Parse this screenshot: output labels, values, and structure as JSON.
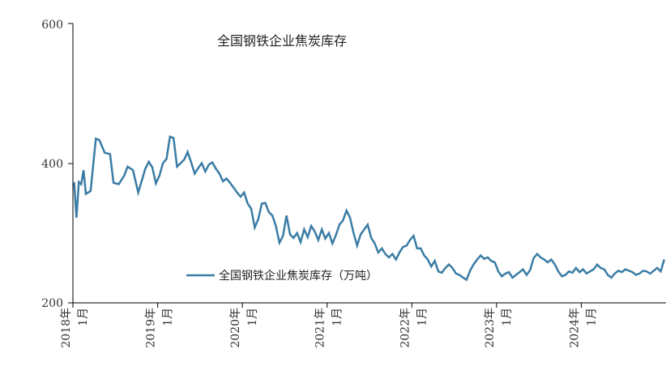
{
  "chart_data": {
    "type": "line",
    "title": "全国钢铁企业焦炭库存",
    "xlabel": "",
    "ylabel": "",
    "ylim": [
      200,
      600
    ],
    "yticks": [
      "200",
      "400",
      "600"
    ],
    "xtick_year": [
      "2018年",
      "2019年",
      "2020年",
      "2021年",
      "2022年",
      "2023年",
      "2024年"
    ],
    "xtick_month": [
      "1月",
      "1月",
      "1月",
      "1月",
      "1月",
      "1月",
      "1月"
    ],
    "x_range": [
      "2018-01",
      "2024-12"
    ],
    "grid": false,
    "legend_position": "center-right",
    "series": [
      {
        "name": "全国钢铁企业焦炭库存（万吨）",
        "color": "#3a7ca5",
        "points": [
          [
            "2018-01",
            373
          ],
          [
            "2018-01",
            322
          ],
          [
            "2018-01",
            373
          ],
          [
            "2018-02",
            370
          ],
          [
            "2018-02",
            390
          ],
          [
            "2018-02",
            356
          ],
          [
            "2018-03",
            360
          ],
          [
            "2018-04",
            435
          ],
          [
            "2018-04",
            433
          ],
          [
            "2018-05",
            415
          ],
          [
            "2018-06",
            413
          ],
          [
            "2018-06",
            372
          ],
          [
            "2018-07",
            370
          ],
          [
            "2018-08",
            382
          ],
          [
            "2018-08",
            395
          ],
          [
            "2018-09",
            390
          ],
          [
            "2018-10",
            358
          ],
          [
            "2018-10",
            375
          ],
          [
            "2018-11",
            392
          ],
          [
            "2018-11",
            402
          ],
          [
            "2018-12",
            394
          ],
          [
            "2018-12",
            371
          ],
          [
            "2019-01",
            382
          ],
          [
            "2019-01",
            400
          ],
          [
            "2019-02",
            406
          ],
          [
            "2019-02",
            438
          ],
          [
            "2019-03",
            436
          ],
          [
            "2019-03",
            395
          ],
          [
            "2019-04",
            400
          ],
          [
            "2019-04",
            405
          ],
          [
            "2019-05",
            416
          ],
          [
            "2019-05",
            401
          ],
          [
            "2019-06",
            385
          ],
          [
            "2019-06",
            393
          ],
          [
            "2019-07",
            400
          ],
          [
            "2019-07",
            388
          ],
          [
            "2019-08",
            398
          ],
          [
            "2019-08",
            401
          ],
          [
            "2019-09",
            392
          ],
          [
            "2019-09",
            385
          ],
          [
            "2019-10",
            374
          ],
          [
            "2019-10",
            378
          ],
          [
            "2019-11",
            372
          ],
          [
            "2019-11",
            365
          ],
          [
            "2019-12",
            358
          ],
          [
            "2019-12",
            352
          ],
          [
            "2020-01",
            358
          ],
          [
            "2020-01",
            342
          ],
          [
            "2020-02",
            335
          ],
          [
            "2020-02",
            308
          ],
          [
            "2020-03",
            320
          ],
          [
            "2020-03",
            342
          ],
          [
            "2020-04",
            343
          ],
          [
            "2020-04",
            330
          ],
          [
            "2020-05",
            325
          ],
          [
            "2020-05",
            310
          ],
          [
            "2020-06",
            286
          ],
          [
            "2020-06",
            296
          ],
          [
            "2020-07",
            325
          ],
          [
            "2020-07",
            298
          ],
          [
            "2020-08",
            293
          ],
          [
            "2020-08",
            300
          ],
          [
            "2020-09",
            287
          ],
          [
            "2020-09",
            305
          ],
          [
            "2020-10",
            294
          ],
          [
            "2020-10",
            310
          ],
          [
            "2020-11",
            302
          ],
          [
            "2020-11",
            290
          ],
          [
            "2020-12",
            305
          ],
          [
            "2020-12",
            292
          ],
          [
            "2021-01",
            300
          ],
          [
            "2021-01",
            285
          ],
          [
            "2021-02",
            297
          ],
          [
            "2021-02",
            312
          ],
          [
            "2021-03",
            318
          ],
          [
            "2021-03",
            332
          ],
          [
            "2021-04",
            322
          ],
          [
            "2021-04",
            300
          ],
          [
            "2021-05",
            282
          ],
          [
            "2021-05",
            298
          ],
          [
            "2021-06",
            305
          ],
          [
            "2021-06",
            312
          ],
          [
            "2021-07",
            293
          ],
          [
            "2021-07",
            285
          ],
          [
            "2021-08",
            272
          ],
          [
            "2021-08",
            278
          ],
          [
            "2021-09",
            270
          ],
          [
            "2021-09",
            265
          ],
          [
            "2021-10",
            270
          ],
          [
            "2021-10",
            262
          ],
          [
            "2021-11",
            272
          ],
          [
            "2021-11",
            280
          ],
          [
            "2021-12",
            282
          ],
          [
            "2021-12",
            290
          ],
          [
            "2022-01",
            296
          ],
          [
            "2022-01",
            278
          ],
          [
            "2022-02",
            278
          ],
          [
            "2022-02",
            268
          ],
          [
            "2022-03",
            262
          ],
          [
            "2022-03",
            252
          ],
          [
            "2022-04",
            260
          ],
          [
            "2022-04",
            245
          ],
          [
            "2022-05",
            243
          ],
          [
            "2022-05",
            250
          ],
          [
            "2022-06",
            255
          ],
          [
            "2022-06",
            250
          ],
          [
            "2022-07",
            242
          ],
          [
            "2022-07",
            240
          ],
          [
            "2022-08",
            236
          ],
          [
            "2022-08",
            233
          ],
          [
            "2022-09",
            246
          ],
          [
            "2022-09",
            255
          ],
          [
            "2022-10",
            262
          ],
          [
            "2022-10",
            268
          ],
          [
            "2022-11",
            263
          ],
          [
            "2022-11",
            265
          ],
          [
            "2022-12",
            260
          ],
          [
            "2022-12",
            258
          ],
          [
            "2023-01",
            245
          ],
          [
            "2023-01",
            238
          ],
          [
            "2023-02",
            242
          ],
          [
            "2023-02",
            244
          ],
          [
            "2023-03",
            236
          ],
          [
            "2023-03",
            240
          ],
          [
            "2023-04",
            244
          ],
          [
            "2023-04",
            248
          ],
          [
            "2023-05",
            240
          ],
          [
            "2023-05",
            247
          ],
          [
            "2023-06",
            264
          ],
          [
            "2023-06",
            270
          ],
          [
            "2023-07",
            265
          ],
          [
            "2023-07",
            262
          ],
          [
            "2023-08",
            258
          ],
          [
            "2023-08",
            262
          ],
          [
            "2023-09",
            255
          ],
          [
            "2023-09",
            245
          ],
          [
            "2023-10",
            238
          ],
          [
            "2023-10",
            240
          ],
          [
            "2023-11",
            245
          ],
          [
            "2023-11",
            243
          ],
          [
            "2023-12",
            250
          ],
          [
            "2023-12",
            244
          ],
          [
            "2024-01",
            248
          ],
          [
            "2024-01",
            242
          ],
          [
            "2024-02",
            245
          ],
          [
            "2024-02",
            248
          ],
          [
            "2024-03",
            255
          ],
          [
            "2024-03",
            250
          ],
          [
            "2024-04",
            248
          ],
          [
            "2024-04",
            240
          ],
          [
            "2024-05",
            236
          ],
          [
            "2024-05",
            242
          ],
          [
            "2024-06",
            246
          ],
          [
            "2024-06",
            244
          ],
          [
            "2024-07",
            248
          ],
          [
            "2024-07",
            246
          ],
          [
            "2024-08",
            244
          ],
          [
            "2024-08",
            240
          ],
          [
            "2024-09",
            242
          ],
          [
            "2024-09",
            246
          ],
          [
            "2024-10",
            245
          ],
          [
            "2024-10",
            242
          ],
          [
            "2024-11",
            246
          ],
          [
            "2024-11",
            250
          ],
          [
            "2024-12",
            245
          ],
          [
            "2024-12",
            262
          ]
        ]
      }
    ]
  }
}
